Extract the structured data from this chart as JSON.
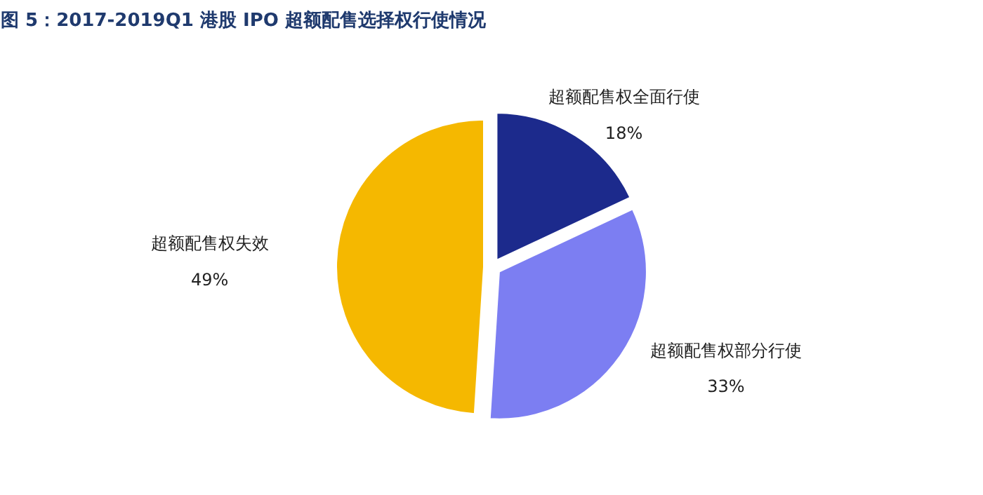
{
  "chart_data": {
    "type": "pie",
    "title": "图 5：2017-2019Q1 港股 IPO 超额配售选择权行使情况",
    "categories": [
      "超额配售权全面行使",
      "超额配售权部分行使",
      "超额配售权失效"
    ],
    "values": [
      18,
      33,
      49
    ],
    "colors": [
      "#1c2a8c",
      "#7c7ef2",
      "#f5b800"
    ],
    "value_labels": [
      "18%",
      "33%",
      "49%"
    ]
  }
}
